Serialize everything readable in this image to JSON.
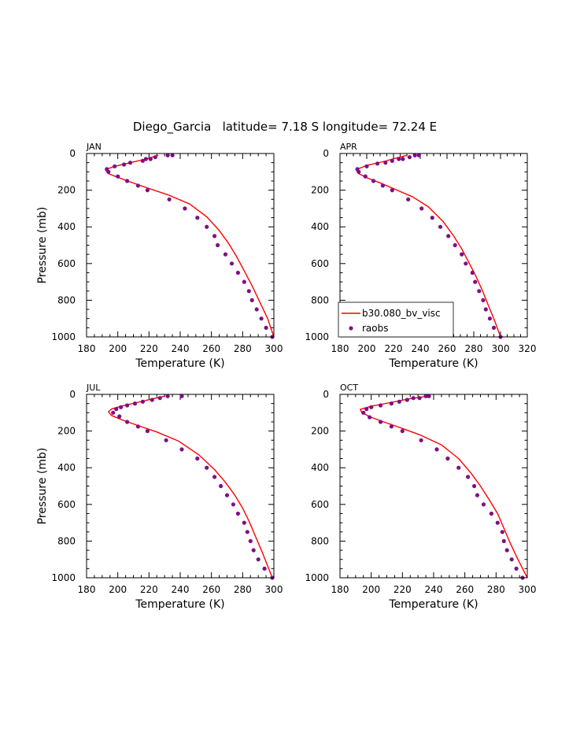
{
  "figure": {
    "title": "Diego_Garcia   latitude= 7.18 S longitude= 72.24 E"
  },
  "chart_data": [
    {
      "type": "line",
      "panel": "JAN",
      "xlabel": "Temperature (K)",
      "ylabel": "Pressure (mb)",
      "xlim": [
        180,
        300
      ],
      "ylim": [
        1000,
        0
      ],
      "xticks": [
        "180",
        "200",
        "220",
        "240",
        "260",
        "280",
        "300"
      ],
      "yticks": [
        "0",
        "200",
        "400",
        "600",
        "800",
        "1000"
      ],
      "series": [
        {
          "name": "b30.080_bv_visc",
          "kind": "line",
          "color": "#ff0000",
          "points": [
            [
              226,
              10
            ],
            [
              218,
              30
            ],
            [
              208,
              50
            ],
            [
              198,
              70
            ],
            [
              192,
              88
            ],
            [
              194,
              110
            ],
            [
              200,
              130
            ],
            [
              208,
              155
            ],
            [
              218,
              185
            ],
            [
              232,
              225
            ],
            [
              246,
              275
            ],
            [
              257,
              345
            ],
            [
              265,
              420
            ],
            [
              271,
              490
            ],
            [
              276,
              560
            ],
            [
              281,
              640
            ],
            [
              286,
              720
            ],
            [
              291,
              810
            ],
            [
              296,
              900
            ],
            [
              300,
              1000
            ]
          ]
        },
        {
          "name": "raobs",
          "kind": "scatter",
          "color": "#7f0f86",
          "points": [
            [
              235,
              10
            ],
            [
              232,
              10
            ],
            [
              224,
              20
            ],
            [
              221,
              30
            ],
            [
              218,
              30
            ],
            [
              216,
              40
            ],
            [
              208,
              50
            ],
            [
              204,
              60
            ],
            [
              198,
              70
            ],
            [
              193,
              85
            ],
            [
              194,
              100
            ],
            [
              200,
              125
            ],
            [
              206,
              150
            ],
            [
              213,
              175
            ],
            [
              219,
              200
            ],
            [
              233,
              250
            ],
            [
              243,
              300
            ],
            [
              251,
              350
            ],
            [
              257,
              400
            ],
            [
              262,
              450
            ],
            [
              264,
              500
            ],
            [
              269,
              550
            ],
            [
              273,
              600
            ],
            [
              277,
              650
            ],
            [
              281,
              700
            ],
            [
              284,
              750
            ],
            [
              286,
              800
            ],
            [
              289,
              850
            ],
            [
              292,
              900
            ],
            [
              295,
              950
            ],
            [
              299,
              1000
            ]
          ]
        }
      ]
    },
    {
      "type": "line",
      "panel": "APR",
      "xlabel": "Temperature (K)",
      "ylabel": "",
      "xlim": [
        180,
        320
      ],
      "ylim": [
        1000,
        0
      ],
      "xticks": [
        "180",
        "200",
        "220",
        "240",
        "260",
        "280",
        "300",
        "320"
      ],
      "yticks": [
        "0",
        "200",
        "400",
        "600",
        "800",
        "1000"
      ],
      "legend": {
        "position": "bottom-left"
      },
      "series": [
        {
          "name": "b30.080_bv_visc",
          "kind": "line",
          "color": "#ff0000",
          "points": [
            [
              230,
              10
            ],
            [
              222,
              25
            ],
            [
              212,
              45
            ],
            [
              200,
              65
            ],
            [
              192,
              88
            ],
            [
              194,
              110
            ],
            [
              201,
              135
            ],
            [
              210,
              160
            ],
            [
              221,
              195
            ],
            [
              234,
              235
            ],
            [
              246,
              290
            ],
            [
              257,
              370
            ],
            [
              265,
              450
            ],
            [
              271,
              520
            ],
            [
              276,
              590
            ],
            [
              281,
              660
            ],
            [
              286,
              740
            ],
            [
              291,
              830
            ],
            [
              296,
              920
            ],
            [
              300,
              1000
            ]
          ]
        },
        {
          "name": "raobs",
          "kind": "scatter",
          "color": "#7f0f86",
          "points": [
            [
              239,
              10
            ],
            [
              236,
              10
            ],
            [
              232,
              20
            ],
            [
              227,
              30
            ],
            [
              224,
              30
            ],
            [
              219,
              40
            ],
            [
              214,
              50
            ],
            [
              208,
              55
            ],
            [
              200,
              70
            ],
            [
              193,
              85
            ],
            [
              194,
              100
            ],
            [
              199,
              125
            ],
            [
              205,
              150
            ],
            [
              212,
              175
            ],
            [
              219,
              200
            ],
            [
              231,
              250
            ],
            [
              241,
              300
            ],
            [
              249,
              350
            ],
            [
              255,
              400
            ],
            [
              261,
              450
            ],
            [
              266,
              500
            ],
            [
              271,
              550
            ],
            [
              274,
              600
            ],
            [
              279,
              650
            ],
            [
              281,
              700
            ],
            [
              284,
              750
            ],
            [
              287,
              800
            ],
            [
              289,
              850
            ],
            [
              292,
              900
            ],
            [
              295,
              950
            ],
            [
              300,
              1000
            ]
          ]
        }
      ]
    },
    {
      "type": "line",
      "panel": "JUL",
      "xlabel": "Temperature (K)",
      "ylabel": "Pressure (mb)",
      "xlim": [
        180,
        300
      ],
      "ylim": [
        1000,
        0
      ],
      "xticks": [
        "180",
        "200",
        "220",
        "240",
        "260",
        "280",
        "300"
      ],
      "yticks": [
        "0",
        "200",
        "400",
        "600",
        "800",
        "1000"
      ],
      "series": [
        {
          "name": "b30.080_bv_visc",
          "kind": "line",
          "color": "#ff0000",
          "points": [
            [
              230,
              10
            ],
            [
              222,
              25
            ],
            [
              212,
              45
            ],
            [
              202,
              65
            ],
            [
              196,
              80
            ],
            [
              194,
              95
            ],
            [
              196,
              115
            ],
            [
              203,
              140
            ],
            [
              213,
              170
            ],
            [
              225,
              205
            ],
            [
              239,
              255
            ],
            [
              252,
              330
            ],
            [
              262,
              410
            ],
            [
              269,
              480
            ],
            [
              275,
              550
            ],
            [
              280,
              620
            ],
            [
              284,
              690
            ],
            [
              288,
              770
            ],
            [
              293,
              870
            ],
            [
              299,
              1000
            ]
          ]
        },
        {
          "name": "raobs",
          "kind": "scatter",
          "color": "#7f0f86",
          "points": [
            [
              241,
              10
            ],
            [
              232,
              10
            ],
            [
              227,
              20
            ],
            [
              222,
              30
            ],
            [
              216,
              40
            ],
            [
              211,
              50
            ],
            [
              206,
              60
            ],
            [
              202,
              70
            ],
            [
              199,
              80
            ],
            [
              197,
              100
            ],
            [
              201,
              120
            ],
            [
              206,
              150
            ],
            [
              213,
              175
            ],
            [
              219,
              200
            ],
            [
              231,
              250
            ],
            [
              241,
              300
            ],
            [
              251,
              350
            ],
            [
              257,
              400
            ],
            [
              262,
              450
            ],
            [
              266,
              500
            ],
            [
              270,
              550
            ],
            [
              274,
              600
            ],
            [
              277,
              650
            ],
            [
              281,
              700
            ],
            [
              283,
              750
            ],
            [
              285,
              800
            ],
            [
              287,
              850
            ],
            [
              290,
              900
            ],
            [
              294,
              950
            ],
            [
              299,
              1000
            ]
          ]
        }
      ]
    },
    {
      "type": "line",
      "panel": "OCT",
      "xlabel": "Temperature (K)",
      "ylabel": "",
      "xlim": [
        180,
        300
      ],
      "ylim": [
        1000,
        0
      ],
      "xticks": [
        "180",
        "200",
        "220",
        "240",
        "260",
        "280",
        "300"
      ],
      "yticks": [
        "0",
        "200",
        "400",
        "600",
        "800",
        "1000"
      ],
      "series": [
        {
          "name": "b30.080_bv_visc",
          "kind": "line",
          "color": "#ff0000",
          "points": [
            [
              236,
              10
            ],
            [
              224,
              25
            ],
            [
              212,
              45
            ],
            [
              200,
              65
            ],
            [
              193,
              82
            ],
            [
              194,
              100
            ],
            [
              200,
              125
            ],
            [
              208,
              150
            ],
            [
              218,
              180
            ],
            [
              231,
              220
            ],
            [
              245,
              275
            ],
            [
              256,
              350
            ],
            [
              264,
              430
            ],
            [
              270,
              500
            ],
            [
              276,
              580
            ],
            [
              281,
              650
            ],
            [
              285,
              730
            ],
            [
              289,
              810
            ],
            [
              294,
              900
            ],
            [
              300,
              1000
            ]
          ]
        },
        {
          "name": "raobs",
          "kind": "scatter",
          "color": "#7f0f86",
          "points": [
            [
              237,
              10
            ],
            [
              235,
              10
            ],
            [
              231,
              20
            ],
            [
              227,
              20
            ],
            [
              223,
              30
            ],
            [
              218,
              40
            ],
            [
              213,
              50
            ],
            [
              206,
              60
            ],
            [
              200,
              70
            ],
            [
              197,
              80
            ],
            [
              195,
              100
            ],
            [
              199,
              125
            ],
            [
              206,
              150
            ],
            [
              213,
              175
            ],
            [
              220,
              200
            ],
            [
              232,
              250
            ],
            [
              242,
              300
            ],
            [
              249,
              350
            ],
            [
              256,
              400
            ],
            [
              262,
              450
            ],
            [
              266,
              500
            ],
            [
              268,
              550
            ],
            [
              272,
              600
            ],
            [
              277,
              650
            ],
            [
              281,
              700
            ],
            [
              284,
              750
            ],
            [
              285,
              800
            ],
            [
              287,
              850
            ],
            [
              290,
              900
            ],
            [
              293,
              950
            ],
            [
              297,
              1000
            ]
          ]
        }
      ]
    }
  ]
}
